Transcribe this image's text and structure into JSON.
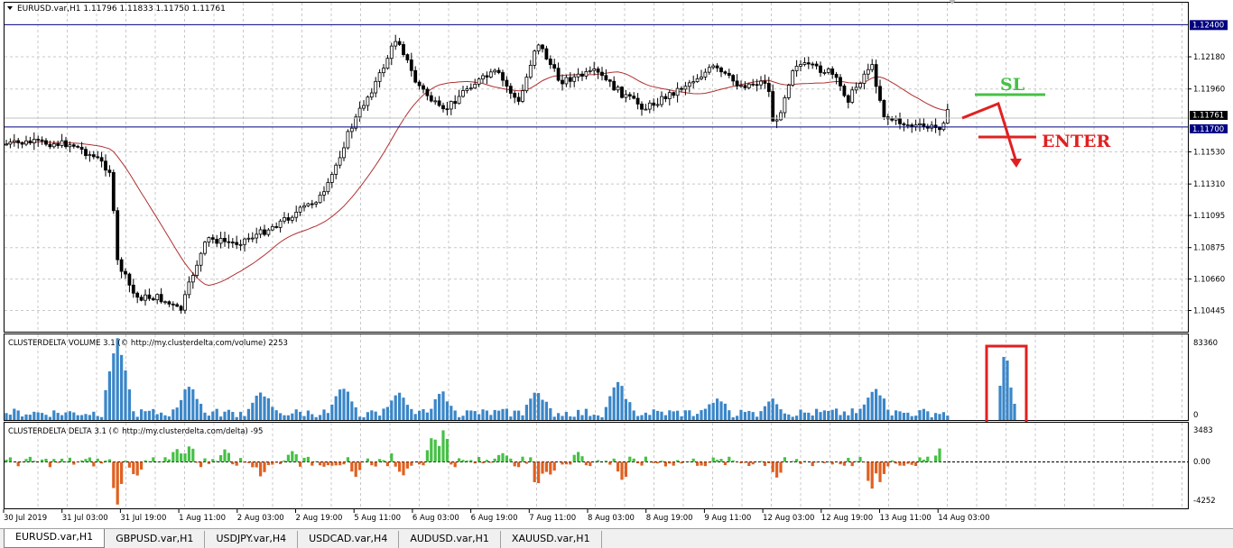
{
  "chart": {
    "symbol_line": "EURUSD.var,H1  1.11796 1.11833 1.11750 1.11761",
    "price_labels": [
      "1.12180",
      "1.11960",
      "1.11530",
      "1.11310",
      "1.11095",
      "1.10875",
      "1.10660",
      "1.10445"
    ],
    "price_values": [
      1.1218,
      1.1196,
      1.1153,
      1.1131,
      1.11095,
      1.10875,
      1.1066,
      1.10445
    ],
    "price_range": [
      1.103,
      1.1255
    ],
    "level_resistance": {
      "label": "1.12400",
      "value": 1.124
    },
    "level_support": {
      "label": "1.11700",
      "value": 1.117
    },
    "current_price": {
      "label": "1.11761",
      "value": 1.11761
    },
    "annotations": {
      "sl": "SL",
      "enter": "ENTER"
    },
    "colors": {
      "sl": "#46c046",
      "enter": "#e02020",
      "level": "#000080",
      "ma": "#b03030",
      "volume": "#3a86c8",
      "delta_pos": "#46c046",
      "delta_neg": "#e06020"
    }
  },
  "volume_panel": {
    "title": "CLUSTERDELTA VOLUME 3.1 (© http://my.clusterdelta.com/volume) 2253",
    "scale_top": "83360",
    "scale_bottom": "0"
  },
  "delta_panel": {
    "title": "CLUSTERDELTA DELTA 3.1 (© http://my.clusterdelta.com/delta) -95",
    "scale_top": "3483",
    "scale_mid": "0.00",
    "scale_bottom": "-4252"
  },
  "time_axis": [
    "30 Jul 2019",
    "31 Jul 03:00",
    "31 Jul 19:00",
    "1 Aug 11:00",
    "2 Aug 03:00",
    "2 Aug 19:00",
    "5 Aug 11:00",
    "6 Aug 03:00",
    "6 Aug 19:00",
    "7 Aug 11:00",
    "8 Aug 03:00",
    "8 Aug 19:00",
    "9 Aug 11:00",
    "12 Aug 03:00",
    "12 Aug 19:00",
    "13 Aug 11:00",
    "14 Aug 03:00"
  ],
  "tabs": [
    "EURUSD.var,H1",
    "GBPUSD.var,H1",
    "USDJPY.var,H4",
    "USDCAD.var,H4",
    "AUDUSD.var,H1",
    "XAUUSD.var,H1"
  ]
}
